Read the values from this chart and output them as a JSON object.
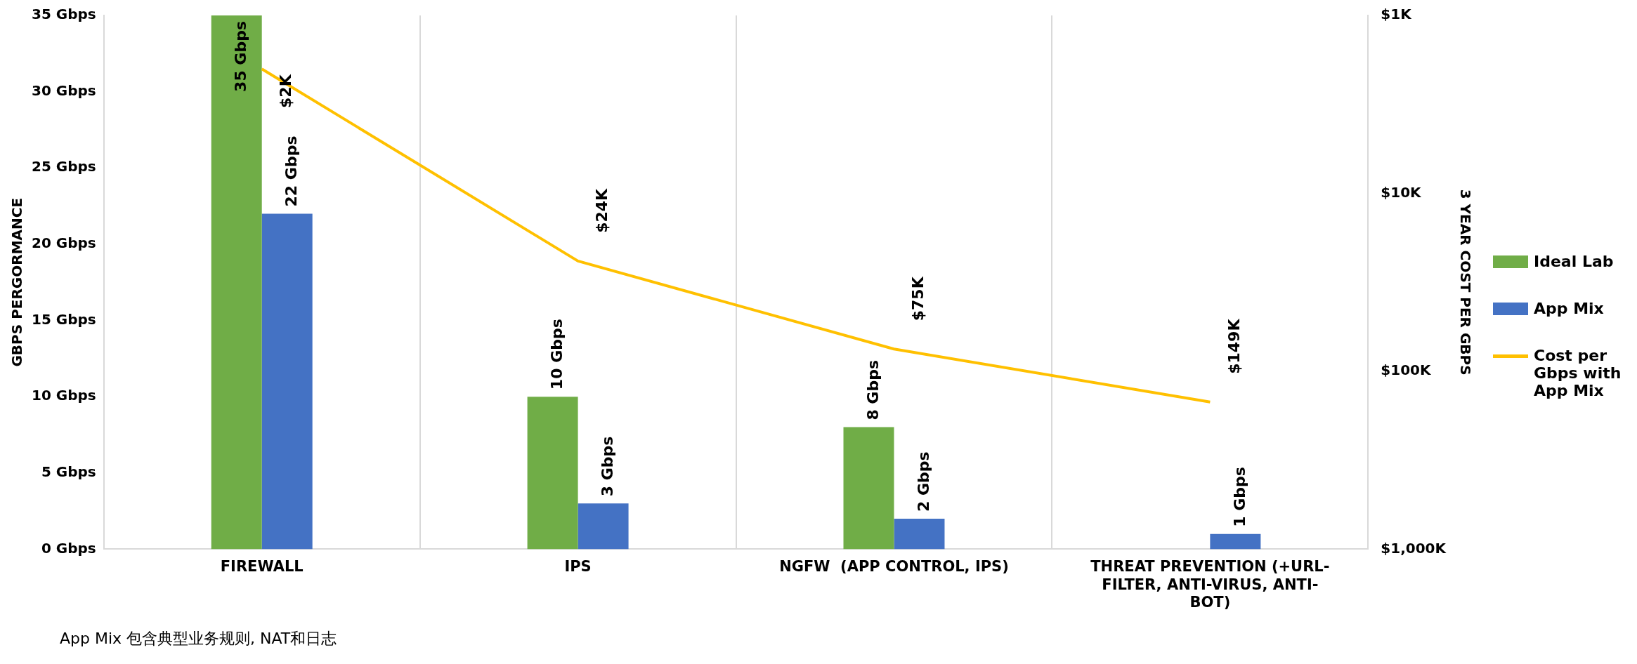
{
  "chart_data": {
    "type": "bar",
    "categories": [
      "FIREWALL",
      "IPS",
      "NGFW  (APP CONTROL, IPS)",
      "THREAT PREVENTION (+URL-FILTER, ANTI-VIRUS, ANTI-BOT)"
    ],
    "ylabel": "GBPS PERGORMANCE",
    "y2label": "3 YEAR COST PER GBPS",
    "ylim": [
      0,
      35
    ],
    "yticks": [
      {
        "value": 0,
        "label": "0 Gbps"
      },
      {
        "value": 5,
        "label": "5 Gbps"
      },
      {
        "value": 10,
        "label": "10 Gbps"
      },
      {
        "value": 15,
        "label": "15 Gbps"
      },
      {
        "value": 20,
        "label": "20 Gbps"
      },
      {
        "value": 25,
        "label": "25 Gbps"
      },
      {
        "value": 30,
        "label": "30 Gbps"
      },
      {
        "value": 35,
        "label": "35 Gbps"
      }
    ],
    "y2lim": [
      1000000,
      1000
    ],
    "y2ticks": [
      {
        "value": 1000,
        "label": "$1K"
      },
      {
        "value": 10000,
        "label": "$10K"
      },
      {
        "value": 100000,
        "label": "$100K"
      },
      {
        "value": 1000000,
        "label": "$1,000K"
      }
    ],
    "log": "y2",
    "grid": "x",
    "legend": "right",
    "series": [
      {
        "name": "Ideal Lab",
        "color": "#70ad47",
        "values": [
          35,
          10,
          8,
          null
        ],
        "value_labels": [
          "35 Gbps",
          "10 Gbps",
          "8 Gbps",
          null
        ]
      },
      {
        "name": "App Mix",
        "color": "#4472c4",
        "values": [
          22,
          3,
          2,
          1
        ],
        "value_labels": [
          "22 Gbps",
          "3 Gbps",
          "2 Gbps",
          "1 Gbps"
        ]
      },
      {
        "name": "Cost per Gbps with App Mix",
        "type": "line",
        "axis": "y2",
        "color": "#ffc000",
        "marker": "none",
        "line_style": "solid",
        "values": [
          2000,
          24000,
          75000,
          149000
        ],
        "value_labels": [
          "$2K",
          "$24K",
          "$75K",
          "$149K"
        ]
      }
    ],
    "annotations": [
      "App Mix 包含典型业务规则, NAT和日志"
    ]
  }
}
